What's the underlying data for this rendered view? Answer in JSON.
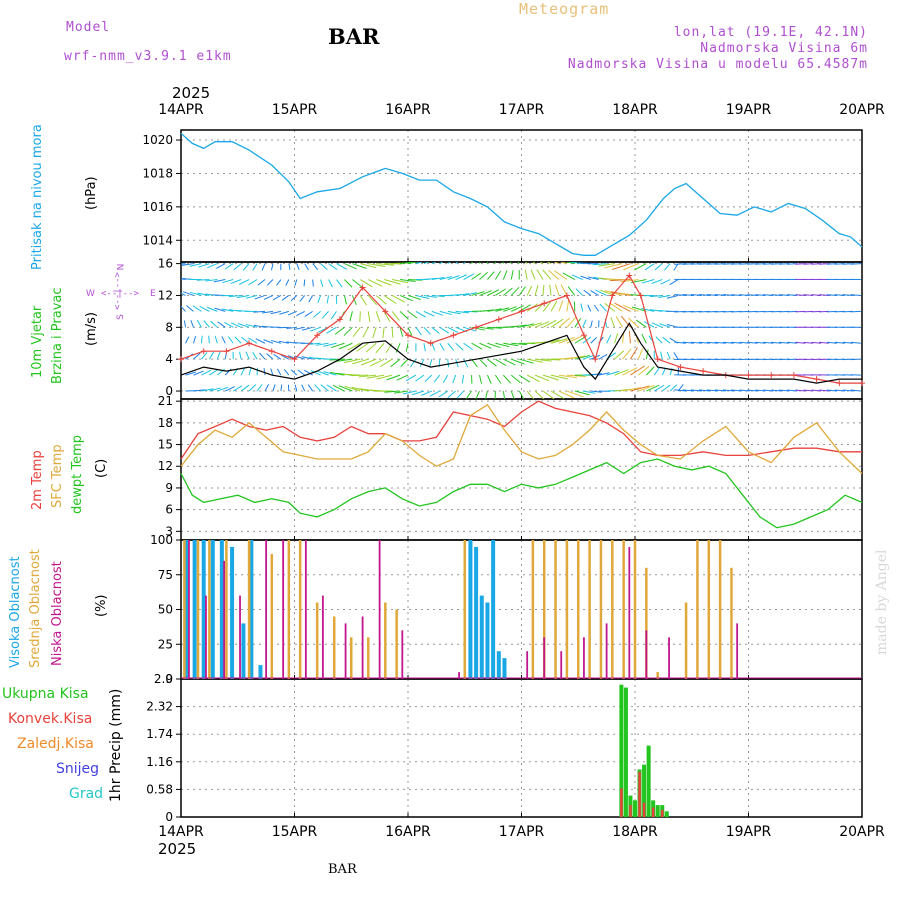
{
  "header": {
    "model_label": "Model",
    "model_name": "wrf-nmm_v3.9.1  e1km",
    "title": "BAR",
    "meteogram_label": "Meteogram",
    "lonlat": "lon,lat (19.1E, 42.1N)",
    "elevation": "Nadmorska Visina 6m",
    "model_elevation": "Nadmorska Visina u modelu 65.4587m",
    "year_top": "2025",
    "year_bottom": "2025",
    "footer_station": "BAR",
    "watermark": "made by Angel"
  },
  "colors": {
    "pressure": "#1aa7e6",
    "temp2m": "#e8423c",
    "sfc_temp": "#e0a83a",
    "dewpt": "#22c41e",
    "high_cloud": "#1aa7e6",
    "mid_cloud": "#e0a83a",
    "low_cloud": "#c2168f",
    "total_precip": "#22c41e",
    "conv_precip": "#e8423c",
    "frozen_precip": "#f08a26",
    "snow": "#4040e0",
    "hail": "#22c7c7",
    "wind_speed": "#000000",
    "gust": "#e8423c"
  },
  "labels": {
    "pressure_name": "Pritisak na nivou mora",
    "pressure_unit": "(hPa)",
    "wind_name1": "10m Vjetar",
    "wind_name2": "Brzina i Pravac",
    "wind_unit": "(m/s)",
    "compass_n": "N",
    "compass_s": "S",
    "compass_w": "W",
    "compass_e": "E",
    "compass_arrow_v": "<--|-->",
    "compass_arrow_h": "<--|-->",
    "temp_name1": "2m Temp",
    "temp_name2": "SFC Temp",
    "temp_name3": "dewpt Temp",
    "temp_unit": "(C)",
    "cloud_name1": "Visoka Oblacnost",
    "cloud_name2": "Srednja Oblacnost",
    "cloud_name3": "Niska Oblacnost",
    "cloud_unit": "(%)",
    "precip_name": "1hr Precip (mm)",
    "legend": [
      "Ukupna Kisa",
      "Konvek.Kisa",
      "Zaledj.Kisa",
      "Snijeg",
      "Grad"
    ]
  },
  "chart_data": [
    {
      "type": "line",
      "name": "pressure",
      "x_ticks": [
        "14APR",
        "15APR",
        "16APR",
        "17APR",
        "18APR",
        "19APR",
        "20APR"
      ],
      "yticks": [
        1014,
        1016,
        1018,
        1020
      ],
      "ylim": [
        1012.7,
        1020.6
      ],
      "x": [
        0,
        0.1,
        0.2,
        0.3,
        0.45,
        0.6,
        0.8,
        0.95,
        1.05,
        1.2,
        1.4,
        1.6,
        1.8,
        1.95,
        2.1,
        2.25,
        2.4,
        2.55,
        2.7,
        2.85,
        3.0,
        3.15,
        3.3,
        3.45,
        3.55,
        3.65,
        3.8,
        3.95,
        4.1,
        4.25,
        4.35,
        4.45,
        4.6,
        4.75,
        4.9,
        5.05,
        5.2,
        5.35,
        5.5,
        5.65,
        5.8,
        5.9,
        6.0
      ],
      "values": [
        1020.4,
        1019.8,
        1019.5,
        1019.9,
        1019.9,
        1019.4,
        1018.5,
        1017.5,
        1016.5,
        1016.9,
        1017.1,
        1017.8,
        1018.3,
        1018.0,
        1017.6,
        1017.6,
        1016.9,
        1016.5,
        1016.0,
        1015.1,
        1014.7,
        1014.4,
        1013.8,
        1013.2,
        1013.1,
        1013.1,
        1013.7,
        1014.3,
        1015.2,
        1016.5,
        1017.1,
        1017.4,
        1016.5,
        1015.6,
        1015.5,
        1016.0,
        1015.7,
        1016.2,
        1015.9,
        1015.2,
        1014.4,
        1014.2,
        1013.6
      ]
    },
    {
      "type": "line",
      "name": "wind",
      "x_ticks": [
        "14APR",
        "15APR",
        "16APR",
        "17APR",
        "18APR",
        "19APR",
        "20APR"
      ],
      "yticks": [
        0,
        4,
        8,
        12,
        16
      ],
      "ylim": [
        -1,
        16.2
      ],
      "series": [
        {
          "key": "speed",
          "x": [
            0,
            0.2,
            0.4,
            0.6,
            0.8,
            1.0,
            1.2,
            1.4,
            1.6,
            1.8,
            2.0,
            2.2,
            2.4,
            2.6,
            2.8,
            3.0,
            3.2,
            3.4,
            3.55,
            3.65,
            3.8,
            3.95,
            4.05,
            4.2,
            4.4,
            4.6,
            4.8,
            5.0,
            5.2,
            5.4,
            5.6,
            5.8,
            6.0
          ],
          "values": [
            2,
            3,
            2.5,
            3,
            2,
            1.5,
            2.5,
            4,
            6,
            6.3,
            4,
            3,
            3.5,
            4,
            4.5,
            5,
            6,
            7,
            3,
            1.5,
            5,
            8.5,
            6,
            3,
            2.5,
            2,
            2,
            1.5,
            1.5,
            1.5,
            1,
            1.5,
            1.5
          ]
        },
        {
          "key": "gust",
          "x": [
            0,
            0.2,
            0.4,
            0.6,
            0.8,
            1.0,
            1.2,
            1.4,
            1.6,
            1.8,
            2.0,
            2.2,
            2.4,
            2.6,
            2.8,
            3.0,
            3.2,
            3.4,
            3.55,
            3.65,
            3.8,
            3.95,
            4.05,
            4.2,
            4.4,
            4.6,
            4.8,
            5.0,
            5.2,
            5.4,
            5.6,
            5.8,
            6.0
          ],
          "values": [
            4,
            5,
            5,
            6,
            5,
            4,
            7,
            9,
            13,
            10,
            7,
            6,
            7,
            8,
            9,
            10,
            11,
            12,
            7,
            4,
            12,
            14.5,
            12,
            4,
            3,
            2.5,
            2,
            2,
            2,
            2,
            1.5,
            1,
            1
          ]
        }
      ]
    },
    {
      "type": "line",
      "name": "temperature",
      "x_ticks": [
        "14APR",
        "15APR",
        "16APR",
        "17APR",
        "18APR",
        "19APR",
        "20APR"
      ],
      "yticks": [
        3,
        6,
        9,
        12,
        15,
        18,
        21
      ],
      "ylim": [
        1.8,
        21.3
      ],
      "series": [
        {
          "key": "temp2m",
          "x": [
            0,
            0.15,
            0.3,
            0.45,
            0.6,
            0.75,
            0.9,
            1.05,
            1.2,
            1.35,
            1.5,
            1.65,
            1.8,
            1.95,
            2.1,
            2.25,
            2.4,
            2.55,
            2.7,
            2.85,
            3.0,
            3.15,
            3.3,
            3.45,
            3.6,
            3.75,
            3.9,
            4.05,
            4.2,
            4.4,
            4.6,
            4.8,
            5.0,
            5.2,
            5.4,
            5.6,
            5.8,
            6.0
          ],
          "values": [
            13,
            16.5,
            17.5,
            18.5,
            17.5,
            17,
            17.5,
            16,
            15.5,
            16,
            17.5,
            16.5,
            16.5,
            15.5,
            15.5,
            16,
            19.5,
            19,
            18.5,
            17.5,
            19.5,
            21,
            20,
            19.5,
            19,
            18,
            16.5,
            14,
            13.5,
            13.5,
            14,
            13.5,
            13.5,
            14,
            14.5,
            14.5,
            14,
            14
          ]
        },
        {
          "key": "sfc_temp",
          "x": [
            0,
            0.15,
            0.3,
            0.45,
            0.6,
            0.75,
            0.9,
            1.05,
            1.2,
            1.35,
            1.5,
            1.65,
            1.8,
            1.95,
            2.1,
            2.25,
            2.4,
            2.55,
            2.7,
            2.85,
            3.0,
            3.15,
            3.3,
            3.45,
            3.6,
            3.75,
            3.9,
            4.05,
            4.2,
            4.4,
            4.6,
            4.8,
            5.0,
            5.2,
            5.4,
            5.6,
            5.8,
            6.0
          ],
          "values": [
            12,
            15,
            17,
            16,
            18,
            16,
            14,
            13.5,
            13,
            13,
            13,
            14,
            16.5,
            15.5,
            13.5,
            12,
            13,
            19,
            20.5,
            17,
            14,
            13,
            13.5,
            15,
            17,
            19.5,
            17,
            15,
            13.5,
            13,
            15.5,
            17.5,
            14,
            12.5,
            16,
            18,
            14,
            11
          ]
        },
        {
          "key": "dewpt",
          "x": [
            0,
            0.1,
            0.2,
            0.35,
            0.5,
            0.65,
            0.8,
            0.95,
            1.05,
            1.2,
            1.35,
            1.5,
            1.65,
            1.8,
            1.95,
            2.1,
            2.25,
            2.4,
            2.55,
            2.7,
            2.85,
            3.0,
            3.15,
            3.3,
            3.45,
            3.6,
            3.75,
            3.9,
            4.05,
            4.2,
            4.35,
            4.5,
            4.65,
            4.8,
            4.95,
            5.1,
            5.25,
            5.4,
            5.55,
            5.7,
            5.85,
            6.0
          ],
          "values": [
            11,
            8,
            7,
            7.5,
            8,
            7,
            7.5,
            7,
            5.5,
            5,
            6,
            7.5,
            8.5,
            9,
            7.5,
            6.5,
            7,
            8.5,
            9.5,
            9.5,
            8.5,
            9.5,
            9,
            9.5,
            10.5,
            11.5,
            12.5,
            11,
            12.5,
            13,
            12,
            11.5,
            12,
            11,
            8,
            5,
            3.5,
            4,
            5,
            6,
            8,
            7
          ]
        }
      ]
    },
    {
      "type": "bar",
      "name": "cloudiness",
      "x_ticks": [
        "14APR",
        "15APR",
        "16APR",
        "17APR",
        "18APR",
        "19APR",
        "20APR"
      ],
      "yticks": [
        0,
        25,
        50,
        75,
        100
      ],
      "ylim": [
        0,
        100
      ],
      "series": [
        {
          "key": "high",
          "bars": [
            [
              0.05,
              100
            ],
            [
              0.12,
              100
            ],
            [
              0.2,
              100
            ],
            [
              0.28,
              100
            ],
            [
              0.36,
              100
            ],
            [
              0.45,
              95
            ],
            [
              0.55,
              40
            ],
            [
              0.62,
              100
            ],
            [
              0.7,
              10
            ],
            [
              2.55,
              100
            ],
            [
              2.6,
              95
            ],
            [
              2.65,
              60
            ],
            [
              2.7,
              55
            ],
            [
              2.75,
              100
            ],
            [
              2.8,
              20
            ],
            [
              2.85,
              15
            ]
          ]
        },
        {
          "key": "mid",
          "bars": [
            [
              0.03,
              100
            ],
            [
              0.15,
              100
            ],
            [
              0.25,
              100
            ],
            [
              0.4,
              100
            ],
            [
              0.6,
              100
            ],
            [
              0.8,
              90
            ],
            [
              0.95,
              100
            ],
            [
              1.05,
              100
            ],
            [
              1.2,
              55
            ],
            [
              1.35,
              45
            ],
            [
              1.5,
              30
            ],
            [
              1.65,
              30
            ],
            [
              1.8,
              55
            ],
            [
              1.9,
              50
            ],
            [
              2.5,
              100
            ],
            [
              3.1,
              100
            ],
            [
              3.2,
              100
            ],
            [
              3.3,
              100
            ],
            [
              3.4,
              100
            ],
            [
              3.5,
              100
            ],
            [
              3.6,
              100
            ],
            [
              3.7,
              100
            ],
            [
              3.8,
              100
            ],
            [
              3.9,
              100
            ],
            [
              4.0,
              100
            ],
            [
              4.1,
              80
            ],
            [
              4.2,
              5
            ],
            [
              4.45,
              55
            ],
            [
              4.55,
              100
            ],
            [
              4.65,
              100
            ],
            [
              4.75,
              100
            ],
            [
              4.85,
              80
            ]
          ]
        },
        {
          "key": "low",
          "bars": [
            [
              0.07,
              100
            ],
            [
              0.22,
              60
            ],
            [
              0.38,
              85
            ],
            [
              0.52,
              60
            ],
            [
              0.75,
              100
            ],
            [
              0.9,
              100
            ],
            [
              1.1,
              100
            ],
            [
              1.25,
              60
            ],
            [
              1.45,
              40
            ],
            [
              1.6,
              45
            ],
            [
              1.75,
              100
            ],
            [
              1.95,
              35
            ],
            [
              2.45,
              5
            ],
            [
              3.05,
              20
            ],
            [
              3.2,
              30
            ],
            [
              3.35,
              20
            ],
            [
              3.55,
              30
            ],
            [
              3.75,
              40
            ],
            [
              3.95,
              95
            ],
            [
              4.1,
              35
            ],
            [
              4.3,
              30
            ],
            [
              4.9,
              40
            ]
          ]
        }
      ]
    },
    {
      "type": "bar",
      "name": "precipitation",
      "x_ticks": [
        "14APR",
        "15APR",
        "16APR",
        "17APR",
        "18APR",
        "19APR",
        "20APR"
      ],
      "yticks": [
        0,
        0.58,
        1.16,
        1.74,
        2.32,
        2.9
      ],
      "ylim": [
        0,
        2.9
      ],
      "series": [
        {
          "key": "total",
          "bars": [
            [
              3.88,
              2.78
            ],
            [
              3.92,
              2.72
            ],
            [
              3.96,
              0.45
            ],
            [
              4.0,
              0.35
            ],
            [
              4.04,
              1.0
            ],
            [
              4.08,
              1.1
            ],
            [
              4.12,
              1.5
            ],
            [
              4.16,
              0.35
            ],
            [
              4.2,
              0.25
            ],
            [
              4.24,
              0.25
            ],
            [
              4.28,
              0.12
            ]
          ]
        },
        {
          "key": "convective",
          "bars": [
            [
              3.88,
              0.6
            ],
            [
              3.96,
              0.25
            ],
            [
              4.04,
              0.95
            ],
            [
              4.08,
              0.3
            ],
            [
              4.16,
              0.2
            ],
            [
              4.24,
              0.15
            ]
          ]
        }
      ]
    }
  ]
}
